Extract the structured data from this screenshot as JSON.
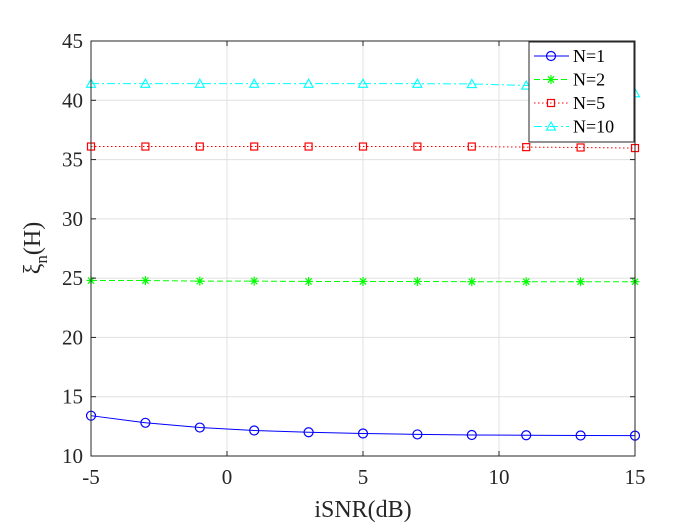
{
  "chart_data": {
    "type": "line",
    "title": "",
    "xlabel": "iSNR(dB)",
    "ylabel_symbol": "ξ",
    "ylabel_subscript": "n",
    "ylabel_suffix": "(H)",
    "xlim": [
      -5,
      15
    ],
    "ylim": [
      10,
      45
    ],
    "xticks": [
      -5,
      0,
      5,
      10,
      15
    ],
    "yticks": [
      10,
      15,
      20,
      25,
      30,
      35,
      40,
      45
    ],
    "grid": true,
    "legend_position": "top-right",
    "x": [
      -5,
      -3,
      -1,
      1,
      3,
      5,
      7,
      9,
      11,
      13,
      15
    ],
    "series": [
      {
        "name": "N=1",
        "color": "#0000ff",
        "marker": "circle",
        "line_style": "solid",
        "values": [
          13.4,
          12.8,
          12.4,
          12.15,
          12.0,
          11.9,
          11.82,
          11.77,
          11.75,
          11.73,
          11.72
        ]
      },
      {
        "name": "N=2",
        "color": "#00ff00",
        "marker": "star",
        "line_style": "dashed",
        "values": [
          24.8,
          24.8,
          24.75,
          24.75,
          24.72,
          24.72,
          24.72,
          24.7,
          24.7,
          24.7,
          24.7
        ]
      },
      {
        "name": "N=5",
        "color": "#ff0000",
        "marker": "square",
        "line_style": "dotted",
        "values": [
          36.1,
          36.1,
          36.1,
          36.1,
          36.1,
          36.1,
          36.1,
          36.1,
          36.05,
          36.02,
          35.97
        ]
      },
      {
        "name": "N=10",
        "color": "#00ffff",
        "marker": "triangle",
        "line_style": "dashdot",
        "values": [
          41.4,
          41.4,
          41.4,
          41.4,
          41.4,
          41.4,
          41.4,
          41.38,
          41.25,
          41.05,
          40.6
        ]
      }
    ]
  }
}
